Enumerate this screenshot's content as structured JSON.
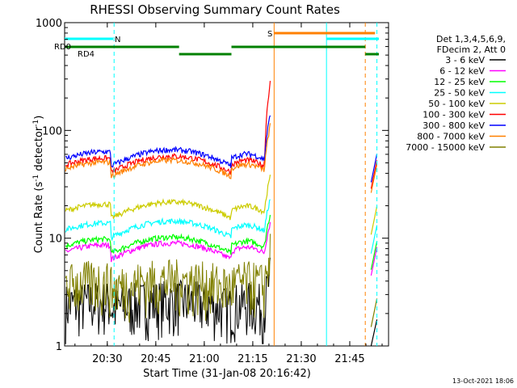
{
  "chart_data": {
    "type": "line",
    "title": "RHESSI Observing Summary Count Rates",
    "xlabel": "Start Time (31-Jan-08 20:16:42)",
    "ylabel_main": "Count Rate (s",
    "ylabel_sup1": "-1",
    "ylabel_mid": " detector",
    "ylabel_sup2": "-1",
    "ylabel_end": ")",
    "y_scale": "log",
    "ylim": [
      1,
      1000
    ],
    "x_range_minutes": [
      20.28,
      21.95
    ],
    "x_ticks": [
      {
        "label": "20:30",
        "hour": 20.5
      },
      {
        "label": "20:45",
        "hour": 20.75
      },
      {
        "label": "21:00",
        "hour": 21.0
      },
      {
        "label": "21:15",
        "hour": 21.25
      },
      {
        "label": "21:30",
        "hour": 21.5
      },
      {
        "label": "21:45",
        "hour": 21.75
      }
    ],
    "y_ticks": [
      {
        "label": "1",
        "value": 1
      },
      {
        "label": "10",
        "value": 10
      },
      {
        "label": "100",
        "value": 100
      },
      {
        "label": "1000",
        "value": 1000
      }
    ],
    "legend_header": [
      "Det 1,3,4,5,6,9,",
      "FDecim 2, Att 0"
    ],
    "legend_position": "right",
    "series": [
      {
        "name": "3 - 6 keV",
        "color": "#000000",
        "base": 1.6,
        "flare": 3
      },
      {
        "name": "6 - 12 keV",
        "color": "#ff00ff",
        "base": 7.5,
        "flare": 15
      },
      {
        "name": "12 - 25 keV",
        "color": "#00ff00",
        "base": 8.5,
        "flare": 18
      },
      {
        "name": "25 - 50 keV",
        "color": "#00ffff",
        "base": 12,
        "flare": 25
      },
      {
        "name": "50 - 100 keV",
        "color": "#cccc00",
        "base": 18,
        "flare": 40
      },
      {
        "name": "100 - 300 keV",
        "color": "#ff0000",
        "base": 48,
        "flare": 300
      },
      {
        "name": "300 - 800 keV",
        "color": "#0000ff",
        "base": 55,
        "flare": 150
      },
      {
        "name": "800 - 7000 keV",
        "color": "#ff8000",
        "base": 44,
        "flare": 120
      },
      {
        "name": "7000 - 15000 keV",
        "color": "#808000",
        "base": 2.5,
        "flare": 5
      }
    ],
    "markers": {
      "rd0_label": "RD0",
      "rd4_label": "RD4",
      "n_label": "N",
      "s_label": "S"
    },
    "segments": {
      "rd_color": "#008000",
      "n_color": "#00ffff",
      "s_color": "#ff8000"
    }
  },
  "footnote": "13-Oct-2021 18:06"
}
